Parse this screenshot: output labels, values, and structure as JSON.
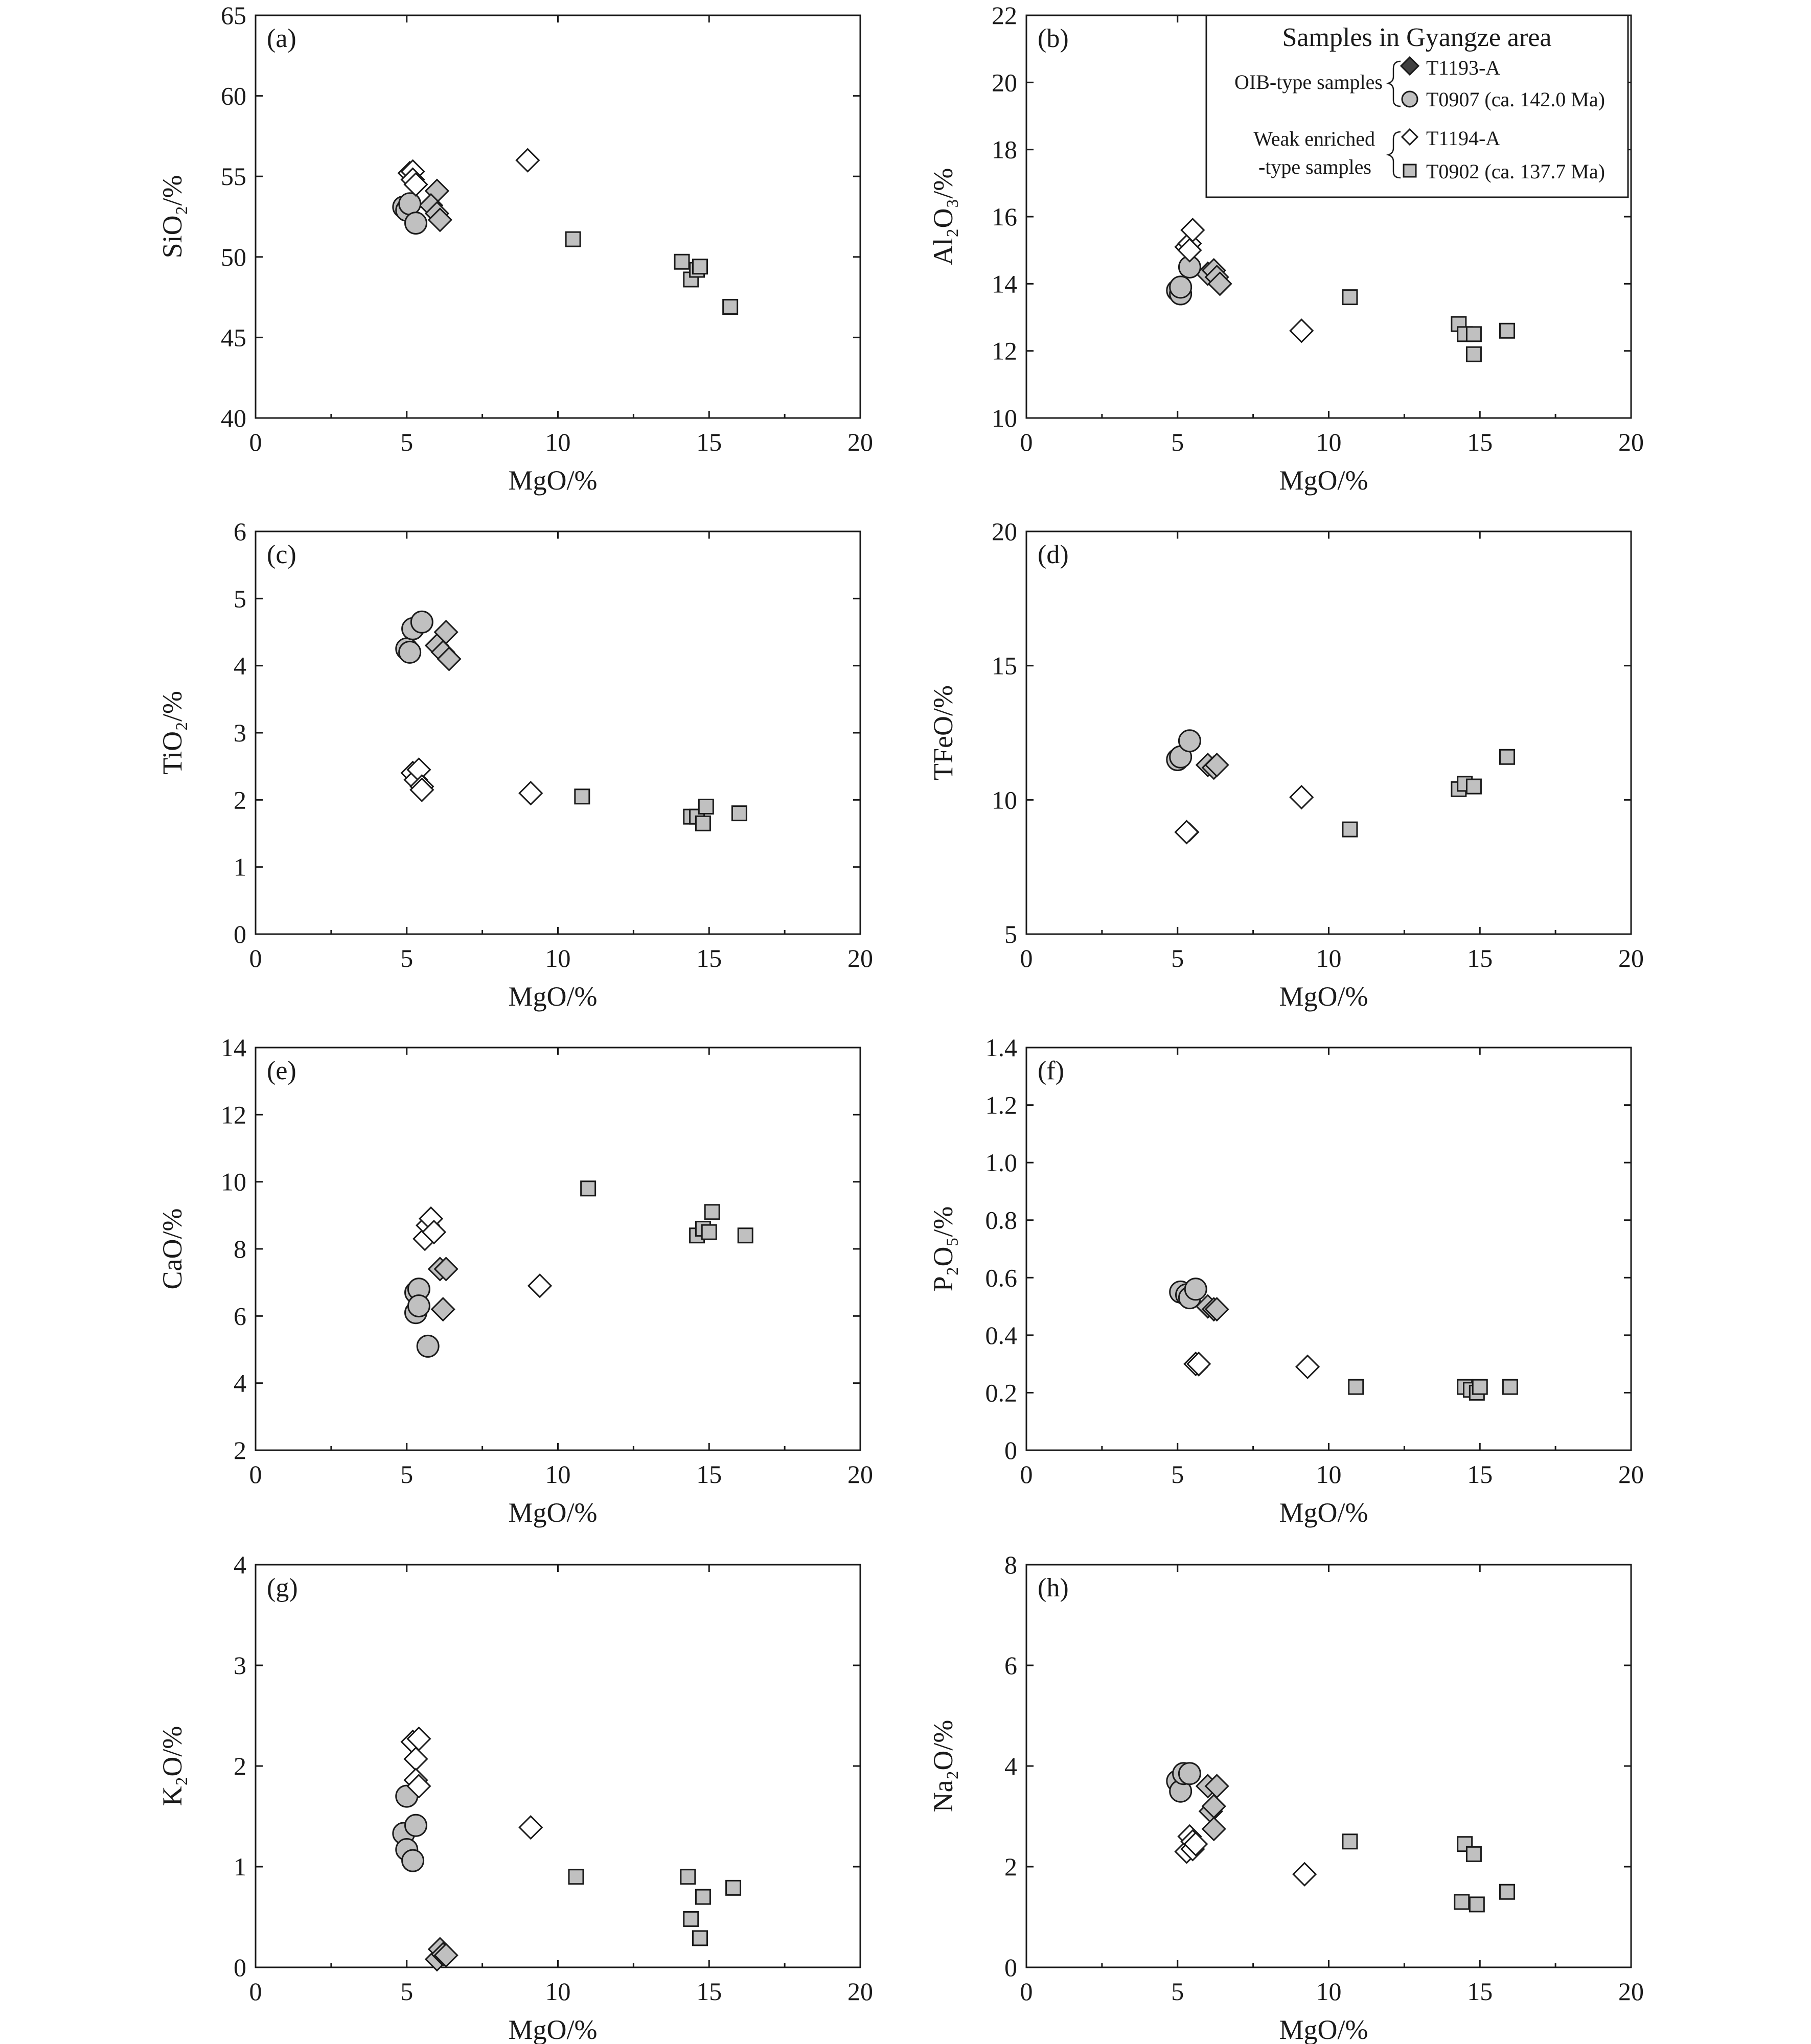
{
  "colors": {
    "gray_fill": "#c0c0c0",
    "dark_fill": "#404040",
    "white_fill": "#ffffff",
    "stroke": "#1a1a1a"
  },
  "legend": {
    "title": "Samples in Gyangze area",
    "groups": [
      {
        "label_lines": [
          "OIB-type samples"
        ],
        "items": [
          {
            "marker": "diamond-dark",
            "label": "T1193-A"
          },
          {
            "marker": "circle-gray",
            "label": "T0907 (ca. 142.0 Ma)"
          }
        ]
      },
      {
        "label_lines": [
          "Weak enriched",
          "-type  samples"
        ],
        "items": [
          {
            "marker": "diamond-white",
            "label": "T1194-A"
          },
          {
            "marker": "square-gray",
            "label": "T0902 (ca. 137.7 Ma)"
          }
        ]
      }
    ]
  },
  "chart_data": [
    {
      "panel": "(a)",
      "type": "scatter",
      "xlabel": "MgO/%",
      "ylabel": "SiO₂/%",
      "xlim": [
        0,
        20
      ],
      "xticks": [
        0,
        5,
        10,
        15,
        20
      ],
      "ylim": [
        40,
        65
      ],
      "yticks": [
        40,
        45,
        50,
        55,
        60,
        65
      ],
      "ytick_labels": [
        "40",
        "45",
        "50",
        "55",
        "60",
        "65"
      ],
      "grid": false,
      "legend": false,
      "series": [
        {
          "name": "T1193-A",
          "marker": "diamond-gray",
          "points": [
            [
              6.0,
              54.1
            ],
            [
              5.8,
              53.2
            ],
            [
              6.0,
              52.7
            ],
            [
              6.1,
              52.3
            ]
          ]
        },
        {
          "name": "T0907 (ca. 142.0 Ma)",
          "marker": "circle-gray",
          "points": [
            [
              4.9,
              53.1
            ],
            [
              5.0,
              52.9
            ],
            [
              5.1,
              53.3
            ],
            [
              5.3,
              52.1
            ]
          ]
        },
        {
          "name": "T1194-A",
          "marker": "diamond-white",
          "points": [
            [
              5.1,
              55.2
            ],
            [
              5.2,
              55.3
            ],
            [
              5.2,
              54.8
            ],
            [
              5.3,
              54.5
            ],
            [
              9.0,
              56.0
            ]
          ]
        },
        {
          "name": "T0902 (ca. 137.7 Ma)",
          "marker": "square-gray",
          "points": [
            [
              10.5,
              51.1
            ],
            [
              14.1,
              49.7
            ],
            [
              14.4,
              48.6
            ],
            [
              14.6,
              49.2
            ],
            [
              14.7,
              49.4
            ],
            [
              15.7,
              46.9
            ]
          ]
        }
      ]
    },
    {
      "panel": "(b)",
      "type": "scatter",
      "xlabel": "MgO/%",
      "ylabel": "Al₂O₃/%",
      "xlim": [
        0,
        20
      ],
      "xticks": [
        0,
        5,
        10,
        15,
        20
      ],
      "ylim": [
        10,
        22
      ],
      "yticks": [
        10,
        12,
        14,
        16,
        18,
        20,
        22
      ],
      "ytick_labels": [
        "10",
        "12",
        "14",
        "16",
        "18",
        "20",
        "22"
      ],
      "grid": false,
      "legend": "top-right",
      "series": [
        {
          "name": "T1193-A",
          "marker": "diamond-gray",
          "points": [
            [
              6.0,
              14.3
            ],
            [
              6.2,
              14.4
            ],
            [
              6.3,
              14.2
            ],
            [
              6.4,
              14.0
            ]
          ]
        },
        {
          "name": "T0907 (ca. 142.0 Ma)",
          "marker": "circle-gray",
          "points": [
            [
              5.0,
              13.8
            ],
            [
              5.1,
              13.7
            ],
            [
              5.1,
              13.9
            ],
            [
              5.4,
              14.5
            ]
          ]
        },
        {
          "name": "T1194-A",
          "marker": "diamond-white",
          "points": [
            [
              5.3,
              15.1
            ],
            [
              5.4,
              15.2
            ],
            [
              5.4,
              15.0
            ],
            [
              5.5,
              15.6
            ],
            [
              9.1,
              12.6
            ]
          ]
        },
        {
          "name": "T0902 (ca. 137.7 Ma)",
          "marker": "square-gray",
          "points": [
            [
              10.7,
              13.6
            ],
            [
              14.3,
              12.8
            ],
            [
              14.5,
              12.5
            ],
            [
              14.8,
              12.5
            ],
            [
              14.8,
              11.9
            ],
            [
              15.9,
              12.6
            ]
          ]
        }
      ]
    },
    {
      "panel": "(c)",
      "type": "scatter",
      "xlabel": "MgO/%",
      "ylabel": "TiO₂/%",
      "xlim": [
        0,
        20
      ],
      "xticks": [
        0,
        5,
        10,
        15,
        20
      ],
      "ylim": [
        0,
        6
      ],
      "yticks": [
        0,
        1,
        2,
        3,
        4,
        5,
        6
      ],
      "ytick_labels": [
        "0",
        "1",
        "2",
        "3",
        "4",
        "5",
        "6"
      ],
      "grid": false,
      "legend": false,
      "series": [
        {
          "name": "T1193-A",
          "marker": "diamond-gray",
          "points": [
            [
              6.0,
              4.3
            ],
            [
              6.2,
              4.2
            ],
            [
              6.3,
              4.5
            ],
            [
              6.4,
              4.1
            ]
          ]
        },
        {
          "name": "T0907 (ca. 142.0 Ma)",
          "marker": "circle-gray",
          "points": [
            [
              5.0,
              4.25
            ],
            [
              5.1,
              4.2
            ],
            [
              5.2,
              4.55
            ],
            [
              5.5,
              4.65
            ]
          ]
        },
        {
          "name": "T1194-A",
          "marker": "diamond-white",
          "points": [
            [
              5.2,
              2.4
            ],
            [
              5.3,
              2.3
            ],
            [
              5.4,
              2.45
            ],
            [
              5.5,
              2.2
            ],
            [
              5.5,
              2.15
            ],
            [
              9.1,
              2.1
            ]
          ]
        },
        {
          "name": "T0902 (ca. 137.7 Ma)",
          "marker": "square-gray",
          "points": [
            [
              10.8,
              2.05
            ],
            [
              14.4,
              1.75
            ],
            [
              14.6,
              1.75
            ],
            [
              14.8,
              1.65
            ],
            [
              14.9,
              1.9
            ],
            [
              16.0,
              1.8
            ]
          ]
        }
      ]
    },
    {
      "panel": "(d)",
      "type": "scatter",
      "xlabel": "MgO/%",
      "ylabel": "TFeO/%",
      "xlim": [
        0,
        20
      ],
      "xticks": [
        0,
        5,
        10,
        15,
        20
      ],
      "ylim": [
        5,
        20
      ],
      "yticks": [
        5,
        10,
        15,
        20
      ],
      "ytick_labels": [
        "5",
        "10",
        "15",
        "20"
      ],
      "grid": false,
      "legend": false,
      "series": [
        {
          "name": "T1193-A",
          "marker": "diamond-dark",
          "points": [
            [
              5.3,
              8.8
            ],
            [
              5.4,
              8.8
            ]
          ]
        },
        {
          "name": "T0907 (ca. 142.0 Ma)",
          "marker": "circle-gray",
          "points": [
            [
              5.0,
              11.5
            ],
            [
              5.1,
              11.6
            ],
            [
              5.4,
              12.2
            ]
          ]
        },
        {
          "name": "T1194-A",
          "marker": "diamond-white",
          "points": [
            [
              5.3,
              8.8
            ],
            [
              9.1,
              10.1
            ]
          ]
        },
        {
          "name": "T0902 (ca. 137.7 Ma)",
          "marker": "square-gray",
          "points": [
            [
              10.7,
              8.9
            ],
            [
              14.3,
              10.4
            ],
            [
              14.5,
              10.6
            ],
            [
              14.8,
              10.5
            ],
            [
              15.9,
              11.6
            ]
          ]
        },
        {
          "name": "",
          "marker": "diamond-gray",
          "points": [
            [
              6.0,
              11.3
            ],
            [
              6.2,
              11.2
            ],
            [
              6.3,
              11.3
            ]
          ]
        }
      ]
    },
    {
      "panel": "(e)",
      "type": "scatter",
      "xlabel": "MgO/%",
      "ylabel": "CaO/%",
      "xlim": [
        0,
        20
      ],
      "xticks": [
        0,
        5,
        10,
        15,
        20
      ],
      "ylim": [
        2,
        14
      ],
      "yticks": [
        2,
        4,
        6,
        8,
        10,
        12,
        14
      ],
      "ytick_labels": [
        "2",
        "4",
        "6",
        "8",
        "10",
        "12",
        "14"
      ],
      "grid": false,
      "legend": false,
      "series": [
        {
          "name": "T1193-A",
          "marker": "diamond-gray",
          "points": [
            [
              6.1,
              7.4
            ],
            [
              6.3,
              7.4
            ],
            [
              6.2,
              6.2
            ]
          ]
        },
        {
          "name": "T0907 (ca. 142.0 Ma)",
          "marker": "circle-gray",
          "points": [
            [
              5.3,
              6.7
            ],
            [
              5.3,
              6.1
            ],
            [
              5.4,
              6.8
            ],
            [
              5.4,
              6.3
            ],
            [
              5.7,
              5.1
            ]
          ]
        },
        {
          "name": "T1194-A",
          "marker": "diamond-white",
          "points": [
            [
              5.6,
              8.3
            ],
            [
              5.7,
              8.7
            ],
            [
              5.8,
              8.9
            ],
            [
              5.9,
              8.5
            ],
            [
              9.4,
              6.9
            ]
          ]
        },
        {
          "name": "T0902 (ca. 137.7 Ma)",
          "marker": "square-gray",
          "points": [
            [
              11.0,
              9.8
            ],
            [
              14.6,
              8.4
            ],
            [
              14.8,
              8.6
            ],
            [
              15.0,
              8.5
            ],
            [
              15.1,
              9.1
            ],
            [
              16.2,
              8.4
            ]
          ]
        }
      ]
    },
    {
      "panel": "(f)",
      "type": "scatter",
      "xlabel": "MgO/%",
      "ylabel": "P₂O₅/%",
      "xlim": [
        0,
        20
      ],
      "xticks": [
        0,
        5,
        10,
        15,
        20
      ],
      "ylim": [
        0,
        1.4
      ],
      "yticks": [
        0,
        0.2,
        0.4,
        0.6,
        0.8,
        1.0,
        1.2,
        1.4
      ],
      "ytick_labels": [
        "0",
        "0.2",
        "0.4",
        "0.6",
        "0.8",
        "1.0",
        "1.2",
        "1.4"
      ],
      "grid": false,
      "legend": false,
      "series": [
        {
          "name": "T1193-A",
          "marker": "diamond-dark",
          "points": [
            [
              5.6,
              0.3
            ],
            [
              5.7,
              0.29
            ]
          ]
        },
        {
          "name": "T0907 (ca. 142.0 Ma)",
          "marker": "circle-gray",
          "points": [
            [
              5.1,
              0.55
            ],
            [
              5.3,
              0.54
            ],
            [
              5.4,
              0.53
            ],
            [
              5.6,
              0.56
            ]
          ]
        },
        {
          "name": "T1194-A",
          "marker": "diamond-white",
          "points": [
            [
              5.6,
              0.3
            ],
            [
              5.7,
              0.3
            ],
            [
              9.3,
              0.29
            ]
          ]
        },
        {
          "name": "T0902 (ca. 137.7 Ma)",
          "marker": "square-gray",
          "points": [
            [
              10.9,
              0.22
            ],
            [
              14.5,
              0.22
            ],
            [
              14.7,
              0.21
            ],
            [
              14.9,
              0.2
            ],
            [
              15.0,
              0.22
            ],
            [
              16.0,
              0.22
            ]
          ]
        },
        {
          "name": "",
          "marker": "diamond-gray",
          "points": [
            [
              6.0,
              0.5
            ],
            [
              6.2,
              0.49
            ],
            [
              6.3,
              0.49
            ]
          ]
        }
      ]
    },
    {
      "panel": "(g)",
      "type": "scatter",
      "xlabel": "MgO/%",
      "ylabel": "K₂O/%",
      "xlim": [
        0,
        20
      ],
      "xticks": [
        0,
        5,
        10,
        15,
        20
      ],
      "ylim": [
        0,
        4
      ],
      "yticks": [
        0,
        1,
        2,
        3,
        4
      ],
      "ytick_labels": [
        "0",
        "1",
        "2",
        "3",
        "4"
      ],
      "grid": false,
      "legend": false,
      "series": [
        {
          "name": "T1193-A",
          "marker": "diamond-gray",
          "points": [
            [
              6.0,
              0.08
            ],
            [
              6.1,
              0.18
            ],
            [
              6.2,
              0.13
            ],
            [
              6.3,
              0.12
            ]
          ]
        },
        {
          "name": "T0907 (ca. 142.0 Ma)",
          "marker": "circle-gray",
          "points": [
            [
              4.9,
              1.33
            ],
            [
              5.0,
              1.7
            ],
            [
              5.0,
              1.17
            ],
            [
              5.2,
              1.06
            ],
            [
              5.3,
              1.41
            ]
          ]
        },
        {
          "name": "T1194-A",
          "marker": "diamond-white",
          "points": [
            [
              5.2,
              2.24
            ],
            [
              5.3,
              2.07
            ],
            [
              5.3,
              1.86
            ],
            [
              5.4,
              2.27
            ],
            [
              5.4,
              1.8
            ],
            [
              9.1,
              1.39
            ]
          ]
        },
        {
          "name": "T0902 (ca. 137.7 Ma)",
          "marker": "square-gray",
          "points": [
            [
              10.6,
              0.9
            ],
            [
              14.3,
              0.9
            ],
            [
              14.4,
              0.48
            ],
            [
              14.7,
              0.29
            ],
            [
              14.8,
              0.7
            ],
            [
              15.8,
              0.79
            ]
          ]
        }
      ]
    },
    {
      "panel": "(h)",
      "type": "scatter",
      "xlabel": "MgO/%",
      "ylabel": "Na₂O/%",
      "xlim": [
        0,
        20
      ],
      "xticks": [
        0,
        5,
        10,
        15,
        20
      ],
      "ylim": [
        0,
        8
      ],
      "yticks": [
        0,
        2,
        4,
        6,
        8
      ],
      "ytick_labels": [
        "0",
        "2",
        "4",
        "6",
        "8"
      ],
      "grid": false,
      "legend": false,
      "series": [
        {
          "name": "T1193-A",
          "marker": "diamond-gray",
          "points": [
            [
              6.0,
              3.6
            ],
            [
              6.1,
              3.1
            ],
            [
              6.2,
              3.2
            ],
            [
              6.2,
              2.75
            ],
            [
              6.3,
              3.6
            ]
          ]
        },
        {
          "name": "T0907 (ca. 142.0 Ma)",
          "marker": "circle-gray",
          "points": [
            [
              5.0,
              3.7
            ],
            [
              5.1,
              3.5
            ],
            [
              5.2,
              3.85
            ],
            [
              5.4,
              3.85
            ]
          ]
        },
        {
          "name": "T1194-A",
          "marker": "diamond-white",
          "points": [
            [
              5.3,
              2.3
            ],
            [
              5.4,
              2.6
            ],
            [
              5.5,
              2.5
            ],
            [
              5.5,
              2.35
            ],
            [
              5.6,
              2.45
            ],
            [
              9.2,
              1.85
            ]
          ]
        },
        {
          "name": "T0902 (ca. 137.7 Ma)",
          "marker": "square-gray",
          "points": [
            [
              10.7,
              2.5
            ],
            [
              14.4,
              1.3
            ],
            [
              14.5,
              2.45
            ],
            [
              14.8,
              2.25
            ],
            [
              14.9,
              1.25
            ],
            [
              15.9,
              1.5
            ]
          ]
        }
      ]
    }
  ]
}
